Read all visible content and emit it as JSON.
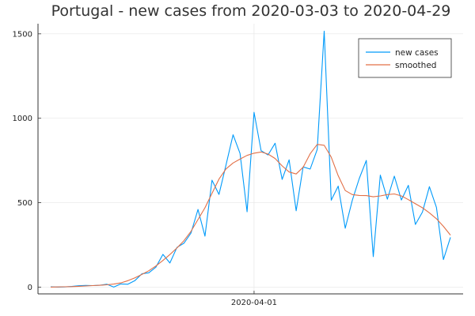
{
  "chart_data": {
    "type": "line",
    "title": "Portugal - new cases from 2020-03-03 to 2020-04-29",
    "xlabel": "",
    "ylabel": "",
    "x_start": "2020-03-03",
    "x_end": "2020-04-29",
    "x_ticks": [
      {
        "date": "2020-04-01",
        "label": "2020-04-01"
      }
    ],
    "y_ticks": [
      0,
      500,
      1000,
      1500
    ],
    "ylim": [
      -40,
      1560
    ],
    "grid": true,
    "legend_position": "top-right",
    "series": [
      {
        "name": "new cases",
        "color": "#009AFA",
        "x": [
          "2020-03-03",
          "2020-03-04",
          "2020-03-05",
          "2020-03-06",
          "2020-03-07",
          "2020-03-08",
          "2020-03-09",
          "2020-03-10",
          "2020-03-11",
          "2020-03-12",
          "2020-03-13",
          "2020-03-14",
          "2020-03-15",
          "2020-03-16",
          "2020-03-17",
          "2020-03-18",
          "2020-03-19",
          "2020-03-20",
          "2020-03-21",
          "2020-03-22",
          "2020-03-23",
          "2020-03-24",
          "2020-03-25",
          "2020-03-26",
          "2020-03-27",
          "2020-03-28",
          "2020-03-29",
          "2020-03-30",
          "2020-03-31",
          "2020-04-01",
          "2020-04-02",
          "2020-04-03",
          "2020-04-04",
          "2020-04-05",
          "2020-04-06",
          "2020-04-07",
          "2020-04-08",
          "2020-04-09",
          "2020-04-10",
          "2020-04-11",
          "2020-04-12",
          "2020-04-13",
          "2020-04-14",
          "2020-04-15",
          "2020-04-16",
          "2020-04-17",
          "2020-04-18",
          "2020-04-19",
          "2020-04-20",
          "2020-04-21",
          "2020-04-22",
          "2020-04-23",
          "2020-04-24",
          "2020-04-25",
          "2020-04-26",
          "2020-04-27",
          "2020-04-28",
          "2020-04-29"
        ],
        "values": [
          2,
          0,
          1,
          4,
          8,
          10,
          9,
          11,
          17,
          0,
          19,
          17,
          38,
          79,
          85,
          118,
          194,
          143,
          235,
          260,
          320,
          460,
          302,
          633,
          549,
          724,
          902,
          792,
          446,
          1035,
          808,
          783,
          852,
          638,
          754,
          452,
          712,
          699,
          815,
          1516,
          515,
          598,
          349,
          514,
          643,
          750,
          181,
          663,
          521,
          657,
          516,
          603,
          371,
          444,
          595,
          472,
          163,
          295
        ]
      },
      {
        "name": "smoothed",
        "color": "#E26F46",
        "x": [
          "2020-03-03",
          "2020-03-04",
          "2020-03-05",
          "2020-03-06",
          "2020-03-07",
          "2020-03-08",
          "2020-03-09",
          "2020-03-10",
          "2020-03-11",
          "2020-03-12",
          "2020-03-13",
          "2020-03-14",
          "2020-03-15",
          "2020-03-16",
          "2020-03-17",
          "2020-03-18",
          "2020-03-19",
          "2020-03-20",
          "2020-03-21",
          "2020-03-22",
          "2020-03-23",
          "2020-03-24",
          "2020-03-25",
          "2020-03-26",
          "2020-03-27",
          "2020-03-28",
          "2020-03-29",
          "2020-03-30",
          "2020-03-31",
          "2020-04-01",
          "2020-04-02",
          "2020-04-03",
          "2020-04-04",
          "2020-04-05",
          "2020-04-06",
          "2020-04-07",
          "2020-04-08",
          "2020-04-09",
          "2020-04-10",
          "2020-04-11",
          "2020-04-12",
          "2020-04-13",
          "2020-04-14",
          "2020-04-15",
          "2020-04-16",
          "2020-04-17",
          "2020-04-18",
          "2020-04-19",
          "2020-04-20",
          "2020-04-21",
          "2020-04-22",
          "2020-04-23",
          "2020-04-24",
          "2020-04-25",
          "2020-04-26",
          "2020-04-27",
          "2020-04-28",
          "2020-04-29"
        ],
        "values": [
          0,
          1,
          2,
          3,
          5,
          7,
          9,
          11,
          14,
          18,
          25,
          38,
          55,
          75,
          97,
          125,
          158,
          193,
          232,
          275,
          330,
          400,
          470,
          555,
          640,
          700,
          735,
          758,
          780,
          793,
          800,
          788,
          762,
          718,
          682,
          670,
          710,
          790,
          845,
          840,
          770,
          660,
          572,
          548,
          543,
          542,
          535,
          540,
          548,
          552,
          540,
          518,
          494,
          470,
          440,
          405,
          360,
          308
        ]
      }
    ]
  }
}
